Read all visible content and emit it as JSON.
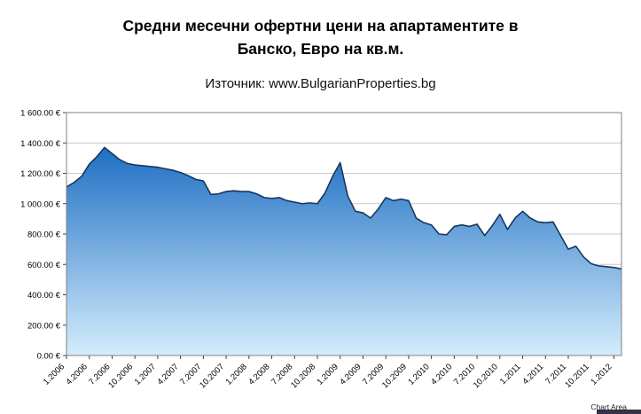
{
  "title": {
    "line1": "Средни месечни офертни цени на апартаментите в",
    "line2": "Банско, Евро на кв.м."
  },
  "subtitle": "Източник: www.BulgarianProperties.bg",
  "tooltip": "Chart Area",
  "colors": {
    "area_top": "#1f6fc4",
    "area_bottom": "#d4edfc",
    "line": "#17375e",
    "grid": "#c9c9c9",
    "border": "#808080",
    "tick": "#404040",
    "label": "#000000"
  },
  "chart_data": {
    "type": "area",
    "title": "Средни месечни офертни цени на апартаментите в Банско, Евро на кв.м.",
    "source_note": "Източник: www.BulgarianProperties.bg",
    "ylabel": "",
    "xlabel": "",
    "ylim": [
      0,
      1600
    ],
    "y_tick_step": 200,
    "y_tick_labels": [
      "0.00 €",
      "200.00 €",
      "400.00 €",
      "600.00 €",
      "800.00 €",
      "1 000.00 €",
      "1 200.00 €",
      "1 400.00 €",
      "1 600.00 €"
    ],
    "x_tick_labels": [
      "1.2006",
      "4.2006",
      "7.2006",
      "10.2006",
      "1.2007",
      "4.2007",
      "7.2007",
      "10.2007",
      "1.2008",
      "4.2008",
      "7.2008",
      "10.2008",
      "1.2009",
      "4.2009",
      "7.2009",
      "10.2009",
      "1.2010",
      "4.2010",
      "7.2010",
      "10.2010",
      "1.2011",
      "4.2011",
      "7.2011",
      "10.2011",
      "1.2012"
    ],
    "x_tick_every": 3,
    "grid": "horizontal",
    "legend": "none",
    "values": [
      1110,
      1140,
      1180,
      1260,
      1310,
      1370,
      1330,
      1290,
      1265,
      1255,
      1250,
      1245,
      1240,
      1230,
      1220,
      1205,
      1185,
      1160,
      1150,
      1060,
      1065,
      1080,
      1085,
      1080,
      1080,
      1065,
      1040,
      1035,
      1040,
      1020,
      1010,
      1000,
      1005,
      1000,
      1070,
      1180,
      1270,
      1050,
      950,
      940,
      905,
      965,
      1040,
      1020,
      1030,
      1020,
      905,
      875,
      860,
      800,
      795,
      850,
      860,
      850,
      865,
      790,
      855,
      930,
      830,
      905,
      950,
      905,
      880,
      875,
      880,
      790,
      700,
      720,
      650,
      605,
      590,
      585,
      580,
      570
    ]
  }
}
